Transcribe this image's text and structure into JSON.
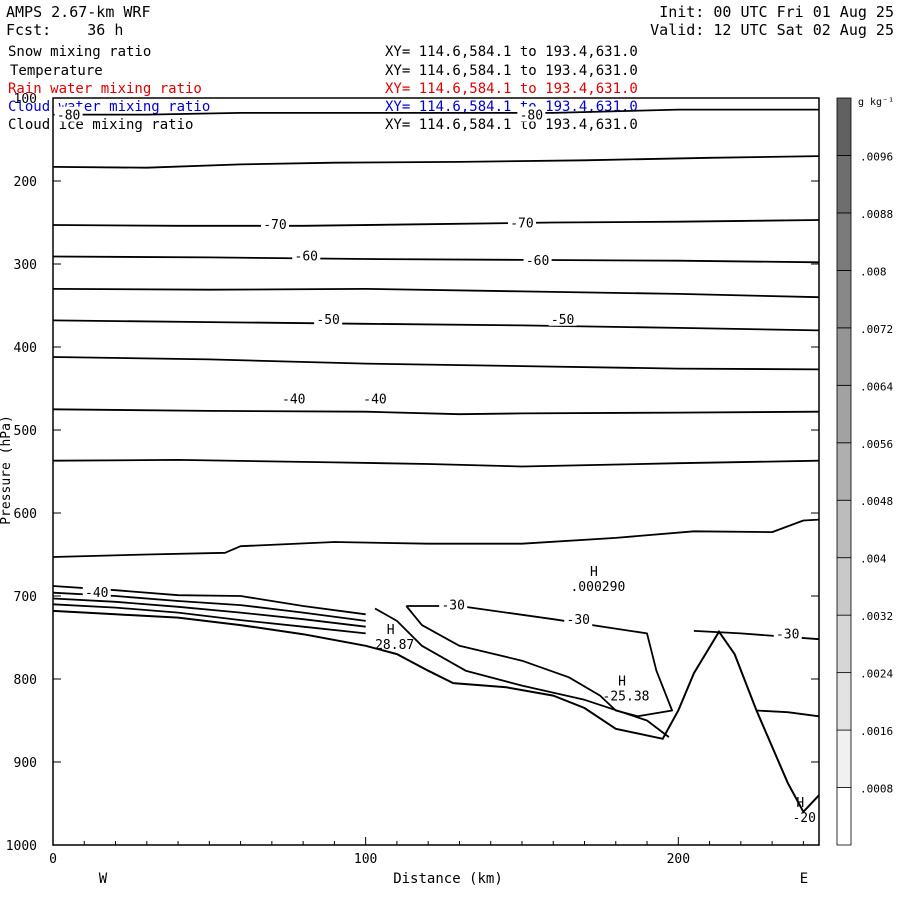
{
  "header": {
    "model": "AMPS 2.67-km WRF",
    "forecast": "Fcst:    36 h",
    "init": "Init: 00 UTC Fri 01 Aug 25",
    "valid": "Valid: 12 UTC Sat 02 Aug 25"
  },
  "fields": [
    {
      "name": "Snow mixing ratio",
      "extent": "XY= 114.6,584.1 to 193.4,631.0",
      "color": "#000000"
    },
    {
      "name": "Temperature",
      "extent": "XY= 114.6,584.1 to 193.4,631.0",
      "color": "#000000"
    },
    {
      "name": "Rain water mixing ratio",
      "extent": "XY= 114.6,584.1 to 193.4,631.0",
      "color": "#e00000"
    },
    {
      "name": "Cloud water mixing ratio",
      "extent": "XY= 114.6,584.1 to 193.4,631.0",
      "color": "#0000d0"
    },
    {
      "name": "Cloud ice mixing ratio",
      "extent": "XY= 114.6,584.1 to 193.4,631.0",
      "color": "#000000"
    }
  ],
  "chart_data": {
    "type": "line",
    "xlabel": "Distance (km)",
    "ylabel": "Pressure (hPa)",
    "xlim": [
      0,
      245
    ],
    "ylim": [
      100,
      1000
    ],
    "x_ticks": [
      "0",
      "100",
      "200"
    ],
    "y_ticks": [
      "100",
      "200",
      "300",
      "400",
      "500",
      "600",
      "700",
      "800",
      "900",
      "1000"
    ],
    "left_label": "W",
    "right_label": "E",
    "colorbar": {
      "units": "g kg⁻¹",
      "ticks": [
        ".0096",
        ".0088",
        ".008",
        ".0072",
        ".0064",
        ".0056",
        ".0048",
        ".004",
        ".0032",
        ".0024",
        ".0016",
        ".0008"
      ],
      "colors": [
        "#ffffff",
        "#f0f0f0",
        "#e3e3e3",
        "#d6d6d6",
        "#c9c9c9",
        "#bcbcbc",
        "#afafaf",
        "#a2a2a2",
        "#959595",
        "#888888",
        "#7b7b7b",
        "#6e6e6e",
        "#616161"
      ]
    },
    "terrain": [
      [
        0,
        718
      ],
      [
        20,
        722
      ],
      [
        40,
        726
      ],
      [
        60,
        735
      ],
      [
        80,
        746
      ],
      [
        100,
        760
      ],
      [
        110,
        770
      ],
      [
        120,
        790
      ],
      [
        128,
        805
      ],
      [
        145,
        810
      ],
      [
        160,
        820
      ],
      [
        170,
        835
      ],
      [
        180,
        860
      ],
      [
        195,
        872
      ],
      [
        200,
        838
      ],
      [
        205,
        793
      ],
      [
        213,
        743
      ],
      [
        218,
        770
      ],
      [
        225,
        838
      ],
      [
        235,
        925
      ],
      [
        240,
        960
      ],
      [
        245,
        940
      ]
    ],
    "contour_lines": [
      [
        [
          0,
          120
        ],
        [
          30,
          120
        ],
        [
          60,
          118
        ],
        [
          80,
          118
        ],
        [
          120,
          118
        ],
        [
          160,
          118
        ],
        [
          200,
          114
        ],
        [
          245,
          114
        ]
      ],
      [
        [
          0,
          183
        ],
        [
          30,
          184
        ],
        [
          60,
          180
        ],
        [
          90,
          178
        ],
        [
          130,
          177
        ],
        [
          170,
          175
        ],
        [
          210,
          172
        ],
        [
          245,
          170
        ]
      ],
      [
        [
          0,
          253
        ],
        [
          40,
          254
        ],
        [
          80,
          254
        ],
        [
          120,
          252
        ],
        [
          160,
          250
        ],
        [
          200,
          249
        ],
        [
          245,
          247
        ]
      ],
      [
        [
          0,
          291
        ],
        [
          50,
          292
        ],
        [
          100,
          294
        ],
        [
          150,
          295
        ],
        [
          200,
          296
        ],
        [
          245,
          298
        ]
      ],
      [
        [
          0,
          330
        ],
        [
          50,
          331
        ],
        [
          100,
          330
        ],
        [
          150,
          333
        ],
        [
          200,
          336
        ],
        [
          245,
          340
        ]
      ],
      [
        [
          0,
          368
        ],
        [
          50,
          370
        ],
        [
          100,
          372
        ],
        [
          150,
          374
        ],
        [
          200,
          377
        ],
        [
          245,
          380
        ]
      ],
      [
        [
          0,
          412
        ],
        [
          50,
          415
        ],
        [
          100,
          420
        ],
        [
          150,
          423
        ],
        [
          200,
          426
        ],
        [
          245,
          427
        ]
      ],
      [
        [
          0,
          475
        ],
        [
          50,
          477
        ],
        [
          100,
          478
        ],
        [
          130,
          481
        ],
        [
          150,
          480
        ],
        [
          200,
          479
        ],
        [
          245,
          478
        ]
      ],
      [
        [
          0,
          537
        ],
        [
          40,
          536
        ],
        [
          90,
          539
        ],
        [
          120,
          541
        ],
        [
          150,
          544
        ],
        [
          200,
          540
        ],
        [
          245,
          537
        ]
      ],
      [
        [
          0,
          653
        ],
        [
          30,
          650
        ],
        [
          55,
          648
        ],
        [
          60,
          640
        ],
        [
          90,
          635
        ],
        [
          120,
          637
        ],
        [
          150,
          637
        ],
        [
          180,
          630
        ],
        [
          205,
          622
        ],
        [
          230,
          623
        ],
        [
          240,
          609
        ],
        [
          245,
          608
        ]
      ],
      [
        [
          0,
          688
        ],
        [
          20,
          693
        ],
        [
          40,
          699
        ],
        [
          60,
          700
        ],
        [
          80,
          712
        ],
        [
          100,
          722
        ]
      ],
      [
        [
          0,
          696
        ],
        [
          20,
          700
        ],
        [
          40,
          706
        ],
        [
          60,
          711
        ],
        [
          80,
          720
        ],
        [
          100,
          730
        ]
      ],
      [
        [
          0,
          703
        ],
        [
          20,
          707
        ],
        [
          40,
          713
        ],
        [
          60,
          720
        ],
        [
          80,
          728
        ],
        [
          100,
          737
        ]
      ],
      [
        [
          0,
          710
        ],
        [
          20,
          714
        ],
        [
          40,
          720
        ],
        [
          60,
          729
        ],
        [
          80,
          737
        ],
        [
          100,
          745
        ]
      ],
      [
        [
          103,
          715
        ],
        [
          110,
          730
        ],
        [
          118,
          760
        ],
        [
          132,
          790
        ],
        [
          150,
          808
        ],
        [
          170,
          825
        ],
        [
          190,
          850
        ],
        [
          197,
          870
        ]
      ],
      [
        [
          113,
          712
        ],
        [
          130,
          712
        ],
        [
          160,
          728
        ],
        [
          190,
          745
        ],
        [
          193,
          790
        ],
        [
          198,
          838
        ],
        [
          187,
          845
        ],
        [
          180,
          838
        ],
        [
          175,
          820
        ],
        [
          165,
          798
        ],
        [
          150,
          778
        ],
        [
          130,
          760
        ],
        [
          118,
          735
        ],
        [
          113,
          712
        ]
      ],
      [
        [
          205,
          742
        ],
        [
          220,
          745
        ],
        [
          245,
          752
        ]
      ],
      [
        [
          225,
          838
        ],
        [
          235,
          840
        ],
        [
          245,
          845
        ]
      ]
    ],
    "annotations": [
      {
        "x": 5,
        "y": 120,
        "text": "-80"
      },
      {
        "x": 153,
        "y": 120,
        "text": "-80"
      },
      {
        "x": 71,
        "y": 252,
        "text": "-70"
      },
      {
        "x": 150,
        "y": 250,
        "text": "-70"
      },
      {
        "x": 81,
        "y": 290,
        "text": "-60"
      },
      {
        "x": 155,
        "y": 295,
        "text": "-60"
      },
      {
        "x": 88,
        "y": 366,
        "text": "-50"
      },
      {
        "x": 163,
        "y": 366,
        "text": "-50"
      },
      {
        "x": 77,
        "y": 462,
        "text": "-40"
      },
      {
        "x": 103,
        "y": 462,
        "text": "-40"
      },
      {
        "x": 14,
        "y": 695,
        "text": "-40"
      },
      {
        "x": 128,
        "y": 710,
        "text": "-30"
      },
      {
        "x": 168,
        "y": 728,
        "text": "-30"
      },
      {
        "x": 235,
        "y": 745,
        "text": "-30"
      }
    ],
    "extrema": [
      {
        "x": 108,
        "y": 746,
        "mark": "H",
        "value": "28.87"
      },
      {
        "x": 173,
        "y": 676,
        "mark": "H",
        "value": ".000290"
      },
      {
        "x": 182,
        "y": 808,
        "mark": "H",
        "value": "-25.38"
      },
      {
        "x": 239,
        "y": 954,
        "mark": "H",
        "value": "-20"
      }
    ]
  }
}
